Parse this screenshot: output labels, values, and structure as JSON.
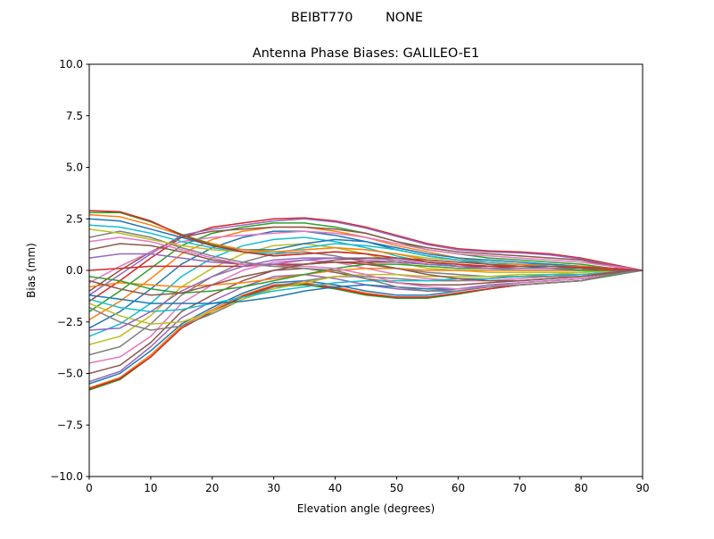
{
  "chart_data": {
    "type": "line",
    "suptitle": "BEIBT770        NONE",
    "title": "Antenna Phase Biases: GALILEO-E1",
    "xlabel": "Elevation angle (degrees)",
    "ylabel": "Bias (mm)",
    "xlim": [
      0,
      90
    ],
    "ylim": [
      -10,
      10
    ],
    "xticks": [
      0,
      10,
      20,
      30,
      40,
      50,
      60,
      70,
      80,
      90
    ],
    "yticks": [
      -10,
      -7.5,
      -5,
      -2.5,
      0,
      2.5,
      5,
      7.5,
      10
    ],
    "ytick_labels": [
      "−10.0",
      "−7.5",
      "−5.0",
      "−2.5",
      "0.0",
      "2.5",
      "5.0",
      "7.5",
      "10.0"
    ],
    "grid": false,
    "colors": [
      "#1f77b4",
      "#ff7f0e",
      "#2ca02c",
      "#d62728",
      "#9467bd",
      "#8c564b",
      "#e377c2",
      "#7f7f7f",
      "#bcbd22",
      "#17becf"
    ],
    "x": [
      0,
      5,
      10,
      15,
      20,
      25,
      30,
      35,
      40,
      45,
      50,
      55,
      60,
      65,
      70,
      75,
      80,
      85,
      90
    ],
    "series": [
      {
        "values": [
          -5.5,
          -5.0,
          -3.9,
          -2.6,
          -1.8,
          -1.1,
          -0.6,
          -0.5,
          -0.7,
          -1.0,
          -1.2,
          -1.2,
          -1.0,
          -0.8,
          -0.6,
          -0.5,
          -0.4,
          -0.2,
          0
        ]
      },
      {
        "values": [
          -5.7,
          -5.2,
          -4.1,
          -2.7,
          -1.9,
          -1.2,
          -0.7,
          -0.6,
          -0.8,
          -1.1,
          -1.3,
          -1.3,
          -1.1,
          -0.9,
          -0.7,
          -0.6,
          -0.5,
          -0.2,
          0
        ]
      },
      {
        "values": [
          -5.8,
          -5.3,
          -4.2,
          -2.8,
          -2.0,
          -1.3,
          -0.8,
          -0.7,
          -0.9,
          -1.2,
          -1.35,
          -1.35,
          -1.15,
          -0.9,
          -0.7,
          -0.6,
          -0.5,
          -0.25,
          0
        ]
      },
      {
        "values": [
          -5.75,
          -5.25,
          -4.2,
          -2.8,
          -2.0,
          -1.25,
          -0.75,
          -0.65,
          -0.85,
          -1.15,
          -1.3,
          -1.3,
          -1.1,
          -0.9,
          -0.7,
          -0.6,
          -0.5,
          -0.2,
          0
        ]
      },
      {
        "values": [
          -5.4,
          -4.9,
          -3.7,
          -2.3,
          -1.5,
          -0.8,
          -0.3,
          -0.2,
          -0.4,
          -0.7,
          -0.9,
          -1.0,
          -0.9,
          -0.7,
          -0.6,
          -0.5,
          -0.4,
          -0.2,
          0
        ]
      },
      {
        "values": [
          -5.0,
          -4.6,
          -3.5,
          -2.0,
          -1.2,
          -0.5,
          0.0,
          0.1,
          -0.1,
          -0.4,
          -0.6,
          -0.7,
          -0.7,
          -0.6,
          -0.5,
          -0.4,
          -0.3,
          -0.15,
          0
        ]
      },
      {
        "values": [
          -4.5,
          -4.2,
          -3.2,
          -1.6,
          -0.7,
          0.0,
          0.4,
          0.5,
          0.4,
          0.1,
          -0.2,
          -0.4,
          -0.5,
          -0.5,
          -0.4,
          -0.3,
          -0.3,
          -0.1,
          0
        ]
      },
      {
        "values": [
          -4.1,
          -3.7,
          -2.6,
          -1.2,
          -0.3,
          0.4,
          0.8,
          0.9,
          0.7,
          0.4,
          0.1,
          -0.1,
          -0.2,
          -0.3,
          -0.3,
          -0.3,
          -0.2,
          -0.1,
          0
        ]
      },
      {
        "values": [
          -3.6,
          -3.2,
          -2.2,
          -0.8,
          0.1,
          0.8,
          1.2,
          1.3,
          1.1,
          0.8,
          0.4,
          0.1,
          0.0,
          -0.1,
          -0.1,
          -0.1,
          -0.1,
          0.0,
          0
        ]
      },
      {
        "values": [
          -3.2,
          -2.6,
          -1.6,
          -0.3,
          0.6,
          1.2,
          1.5,
          1.6,
          1.4,
          1.1,
          0.7,
          0.4,
          0.2,
          0.1,
          0.0,
          0.0,
          0.0,
          0.0,
          0
        ]
      },
      {
        "values": [
          -2.8,
          -2.0,
          -0.9,
          0.3,
          1.1,
          1.6,
          1.9,
          1.9,
          1.7,
          1.4,
          1.0,
          0.7,
          0.5,
          0.3,
          0.2,
          0.1,
          0.1,
          0.0,
          0
        ]
      },
      {
        "values": [
          -2.4,
          -1.5,
          -0.4,
          0.8,
          1.5,
          1.9,
          2.1,
          2.1,
          1.9,
          1.6,
          1.2,
          0.9,
          0.6,
          0.4,
          0.3,
          0.2,
          0.1,
          0.05,
          0
        ]
      },
      {
        "values": [
          -2.0,
          -1.0,
          0.1,
          1.2,
          1.8,
          2.1,
          2.3,
          2.3,
          2.1,
          1.8,
          1.4,
          1.0,
          0.8,
          0.6,
          0.5,
          0.4,
          0.3,
          0.1,
          0
        ]
      },
      {
        "values": [
          -1.5,
          -0.5,
          0.6,
          1.6,
          2.1,
          2.3,
          2.5,
          2.55,
          2.4,
          2.1,
          1.7,
          1.3,
          1.05,
          0.95,
          0.9,
          0.8,
          0.6,
          0.3,
          0
        ]
      },
      {
        "values": [
          -1.2,
          -0.2,
          0.8,
          1.7,
          2.0,
          2.2,
          2.4,
          2.5,
          2.35,
          2.05,
          1.65,
          1.25,
          1.0,
          0.9,
          0.85,
          0.75,
          0.55,
          0.25,
          0
        ]
      },
      {
        "values": [
          -1.0,
          0.0,
          0.9,
          1.6,
          1.9,
          2.0,
          2.1,
          2.1,
          2.0,
          1.8,
          1.4,
          1.1,
          0.9,
          0.8,
          0.7,
          0.6,
          0.5,
          0.2,
          0
        ]
      },
      {
        "values": [
          -0.6,
          0.2,
          0.9,
          1.4,
          1.6,
          1.7,
          1.8,
          1.9,
          1.8,
          1.6,
          1.3,
          1.0,
          0.8,
          0.7,
          0.6,
          0.5,
          0.4,
          0.2,
          0
        ]
      },
      {
        "values": [
          -1.8,
          -2.5,
          -2.9,
          -2.7,
          -2.1,
          -1.4,
          -0.8,
          -0.5,
          -0.3,
          -0.3,
          -0.4,
          -0.5,
          -0.5,
          -0.4,
          -0.3,
          -0.3,
          -0.2,
          -0.1,
          0
        ]
      },
      {
        "values": [
          -1.6,
          -2.2,
          -2.6,
          -2.5,
          -2.0,
          -1.4,
          -0.9,
          -0.6,
          -0.3,
          -0.2,
          -0.2,
          -0.3,
          -0.3,
          -0.3,
          -0.2,
          -0.2,
          -0.1,
          -0.05,
          0
        ]
      },
      {
        "values": [
          -1.4,
          -1.8,
          -2.0,
          -1.9,
          -1.6,
          -1.3,
          -1.0,
          -0.8,
          -0.6,
          -0.5,
          -0.5,
          -0.5,
          -0.4,
          -0.4,
          -0.3,
          -0.2,
          -0.2,
          -0.1,
          0
        ]
      },
      {
        "values": [
          -1.2,
          -1.4,
          -1.6,
          -1.6,
          -1.6,
          -1.5,
          -1.3,
          -1.0,
          -0.8,
          -0.7,
          -0.8,
          -0.9,
          -0.9,
          -0.8,
          -0.6,
          -0.5,
          -0.4,
          -0.2,
          0
        ]
      },
      {
        "values": [
          -0.8,
          -0.6,
          -0.7,
          -0.8,
          -0.7,
          -0.6,
          -0.4,
          -0.2,
          0.0,
          0.1,
          0.1,
          0.0,
          0.0,
          0.0,
          0.0,
          0.0,
          0.0,
          0.0,
          0
        ]
      },
      {
        "values": [
          -0.3,
          -0.5,
          -0.9,
          -1.1,
          -1.0,
          -0.8,
          -0.5,
          -0.2,
          0.1,
          0.3,
          0.3,
          0.2,
          0.1,
          0.1,
          0.1,
          0.1,
          0.0,
          0.0,
          0
        ]
      },
      {
        "values": [
          0.0,
          0.1,
          0.2,
          0.2,
          0.2,
          0.2,
          0.3,
          0.3,
          0.4,
          0.4,
          0.4,
          0.3,
          0.2,
          0.2,
          0.1,
          0.1,
          0.1,
          0.0,
          0
        ]
      },
      {
        "values": [
          0.6,
          0.8,
          0.8,
          0.6,
          0.4,
          0.3,
          0.3,
          0.5,
          0.6,
          0.6,
          0.5,
          0.3,
          0.2,
          0.1,
          0.1,
          0.1,
          0.1,
          0.0,
          0
        ]
      },
      {
        "values": [
          1.0,
          1.3,
          1.2,
          0.9,
          0.5,
          0.3,
          0.2,
          0.3,
          0.4,
          0.3,
          0.1,
          -0.2,
          -0.4,
          -0.5,
          -0.5,
          -0.4,
          -0.3,
          -0.1,
          0
        ]
      },
      {
        "values": [
          1.4,
          1.6,
          1.4,
          1.0,
          0.6,
          0.3,
          0.2,
          0.2,
          0.1,
          -0.2,
          -0.6,
          -0.8,
          -0.9,
          -0.8,
          -0.6,
          -0.5,
          -0.4,
          -0.2,
          0
        ]
      },
      {
        "values": [
          1.6,
          1.9,
          1.6,
          1.1,
          0.7,
          0.4,
          0.2,
          0.1,
          0.0,
          -0.4,
          -0.8,
          -1.0,
          -1.0,
          -0.8,
          -0.7,
          -0.6,
          -0.5,
          -0.2,
          0
        ]
      },
      {
        "values": [
          2.0,
          1.8,
          1.5,
          1.2,
          1.0,
          0.9,
          0.9,
          1.0,
          1.1,
          1.0,
          0.8,
          0.6,
          0.5,
          0.4,
          0.3,
          0.3,
          0.2,
          0.1,
          0
        ]
      },
      {
        "values": [
          2.2,
          2.1,
          1.8,
          1.4,
          1.1,
          0.9,
          0.8,
          1.1,
          1.3,
          1.2,
          1.0,
          0.7,
          0.5,
          0.4,
          0.3,
          0.3,
          0.2,
          0.1,
          0
        ]
      },
      {
        "values": [
          2.5,
          2.4,
          2.0,
          1.6,
          1.2,
          1.0,
          1.0,
          1.3,
          1.5,
          1.4,
          1.1,
          0.8,
          0.6,
          0.5,
          0.4,
          0.3,
          0.2,
          0.1,
          0
        ]
      },
      {
        "values": [
          2.7,
          2.6,
          2.2,
          1.7,
          1.3,
          1.0,
          0.9,
          1.0,
          1.1,
          1.0,
          0.8,
          0.5,
          0.4,
          0.3,
          0.3,
          0.2,
          0.2,
          0.1,
          0
        ]
      },
      {
        "values": [
          2.8,
          2.8,
          2.35,
          1.75,
          1.25,
          0.9,
          0.7,
          0.8,
          0.9,
          0.8,
          0.6,
          0.4,
          0.3,
          0.2,
          0.2,
          0.2,
          0.15,
          0.1,
          0
        ]
      },
      {
        "values": [
          2.9,
          2.85,
          2.4,
          1.7,
          1.2,
          0.9,
          0.7,
          0.8,
          0.9,
          0.8,
          0.6,
          0.4,
          0.3,
          0.2,
          0.2,
          0.2,
          0.15,
          0.1,
          0
        ]
      },
      {
        "values": [
          -2.9,
          -2.8,
          -2.0,
          -1.0,
          -0.3,
          0.2,
          0.5,
          0.6,
          0.6,
          0.5,
          0.4,
          0.3,
          0.2,
          0.1,
          0.1,
          0.1,
          0.1,
          0.0,
          0
        ]
      },
      {
        "values": [
          -0.5,
          -0.9,
          -1.2,
          -1.1,
          -0.7,
          -0.3,
          0.0,
          0.3,
          0.5,
          0.6,
          0.6,
          0.5,
          0.4,
          0.3,
          0.2,
          0.2,
          0.1,
          0.0,
          0
        ]
      }
    ]
  }
}
